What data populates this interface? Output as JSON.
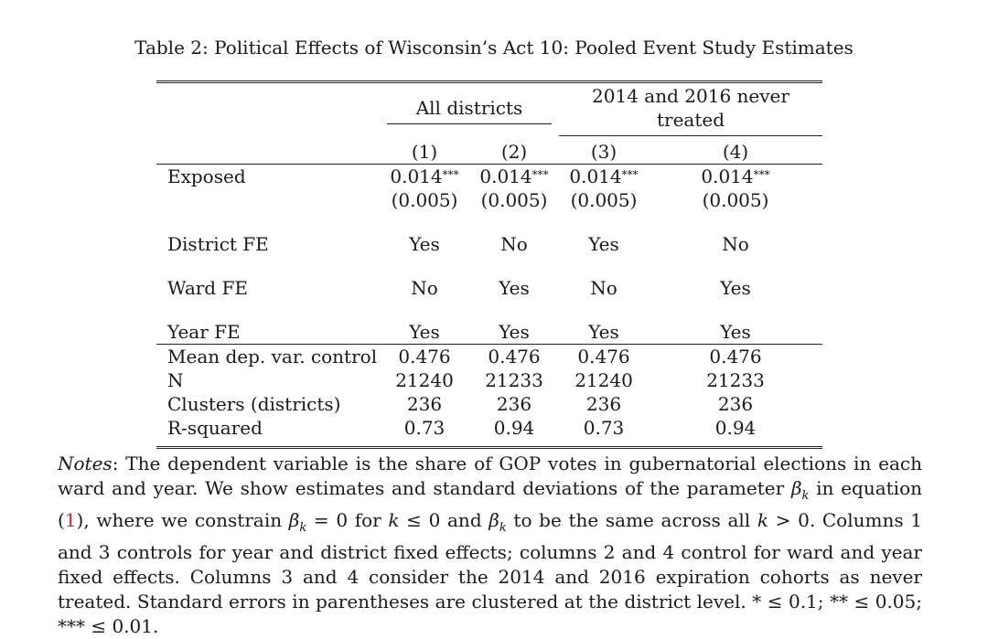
{
  "caption": "Table 2: Political Effects of Wisconsin’s Act 10: Pooled Event Study Estimates",
  "header": {
    "group1": "All districts",
    "group2": "2014 and 2016 never treated",
    "cols": [
      "(1)",
      "(2)",
      "(3)",
      "(4)"
    ]
  },
  "rows": {
    "exposed": {
      "label": "Exposed",
      "coefs": [
        "0.014",
        "0.014",
        "0.014",
        "0.014"
      ],
      "stars": [
        "***",
        "***",
        "***",
        "***"
      ],
      "se": [
        "(0.005)",
        "(0.005)",
        "(0.005)",
        "(0.005)"
      ]
    },
    "district_fe": {
      "label": "District FE",
      "vals": [
        "Yes",
        "No",
        "Yes",
        "No"
      ]
    },
    "ward_fe": {
      "label": "Ward FE",
      "vals": [
        "No",
        "Yes",
        "No",
        "Yes"
      ]
    },
    "year_fe": {
      "label": "Year FE",
      "vals": [
        "Yes",
        "Yes",
        "Yes",
        "Yes"
      ]
    },
    "mean": {
      "label": "Mean dep. var. control",
      "vals": [
        "0.476",
        "0.476",
        "0.476",
        "0.476"
      ]
    },
    "n": {
      "label": "N",
      "vals": [
        "21240",
        "21233",
        "21240",
        "21233"
      ]
    },
    "clusters": {
      "label": "Clusters (districts)",
      "vals": [
        "236",
        "236",
        "236",
        "236"
      ]
    },
    "rsq": {
      "label": "R-squared",
      "vals": [
        "0.73",
        "0.94",
        "0.73",
        "0.94"
      ]
    }
  },
  "notes": {
    "lead": "Notes",
    "part1": ": The dependent variable is the share of GOP votes in gubernatorial elections in each ward and year. We show estimates and standard deviations of the parameter ",
    "beta": "β",
    "k": "k",
    "part2": " in equation (",
    "eq_ref": "1",
    "part3": "), where we constrain ",
    "constraint1": " = 0 for ",
    "constraint2": " ≤ 0 and ",
    "part4": " to be the same across all ",
    "constraint3": " > 0. Columns 1 and 3 controls for year and district fixed effects; columns 2 and 4 control for ward and year fixed effects. Columns 3 and 4 consider the 2014 and 2016 expiration cohorts as never treated. Standard errors in parentheses are clustered at the district level. * ≤ 0.1; ** ≤ 0.05; *** ≤ 0.01."
  }
}
